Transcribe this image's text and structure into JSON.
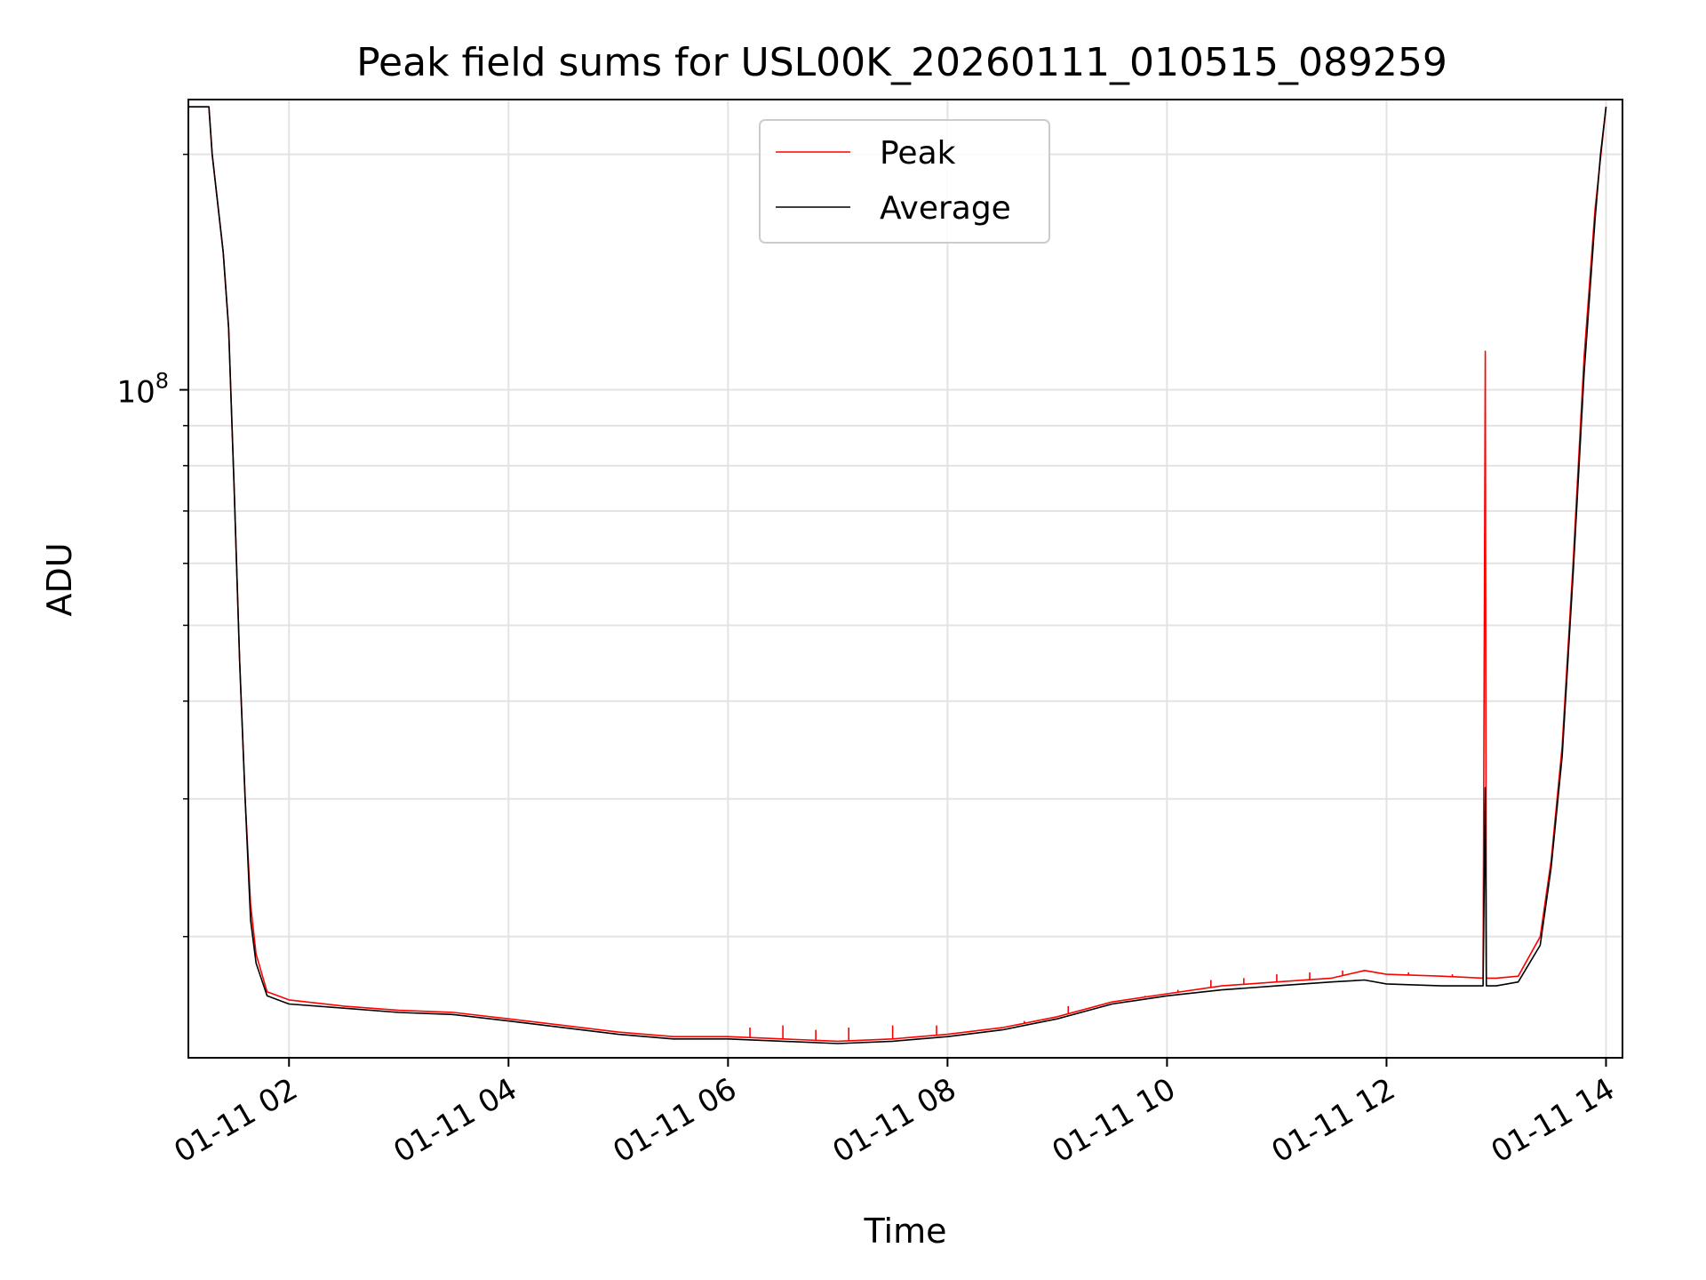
{
  "chart_data": {
    "type": "line",
    "title": "Peak field sums for USL00K_20260111_010515_089259",
    "xlabel": "Time",
    "ylabel": "ADU",
    "yscale": "log",
    "ylim": [
      14000000,
      235000000
    ],
    "xlim_hours": [
      1.083,
      14.15
    ],
    "grid": true,
    "legend_position": "top-center",
    "x_ticks": [
      {
        "hour": 2,
        "label": "01-11 02"
      },
      {
        "hour": 4,
        "label": "01-11 04"
      },
      {
        "hour": 6,
        "label": "01-11 06"
      },
      {
        "hour": 8,
        "label": "01-11 08"
      },
      {
        "hour": 10,
        "label": "01-11 10"
      },
      {
        "hour": 12,
        "label": "01-11 12"
      },
      {
        "hour": 14,
        "label": "01-11 14"
      }
    ],
    "y_major_tick": {
      "value": 100000000,
      "label_base": "10",
      "label_exp": "8"
    },
    "y_minor_ticks": [
      20000000,
      30000000,
      40000000,
      50000000,
      60000000,
      70000000,
      80000000,
      90000000,
      200000000
    ],
    "series": [
      {
        "name": "Peak",
        "color": "#ff0000",
        "x_hours": [
          1.083,
          1.2,
          1.27,
          1.3,
          1.4,
          1.45,
          1.5,
          1.55,
          1.6,
          1.65,
          1.7,
          1.8,
          1.9,
          2.0,
          2.5,
          3.0,
          3.5,
          4.0,
          4.5,
          5.0,
          5.5,
          6.0,
          6.5,
          7.0,
          7.5,
          8.0,
          8.5,
          9.0,
          9.5,
          10.0,
          10.5,
          11.0,
          11.5,
          11.8,
          12.0,
          12.5,
          12.88,
          12.9,
          12.91,
          13.0,
          13.2,
          13.4,
          13.5,
          13.6,
          13.7,
          13.8,
          13.9,
          14.0
        ],
        "y_values": [
          230000000,
          230000000,
          230000000,
          200000000,
          150000000,
          120000000,
          75000000,
          45000000,
          30000000,
          22000000,
          19000000,
          17000000,
          16800000,
          16600000,
          16300000,
          16100000,
          16000000,
          15700000,
          15400000,
          15100000,
          14900000,
          14900000,
          14800000,
          14700000,
          14800000,
          15000000,
          15300000,
          15800000,
          16500000,
          16900000,
          17300000,
          17500000,
          17700000,
          18100000,
          17900000,
          17800000,
          17700000,
          112000000,
          17700000,
          17700000,
          17800000,
          20000000,
          25000000,
          35000000,
          60000000,
          110000000,
          170000000,
          230000000
        ],
        "spikes": [
          {
            "hour": 6.2,
            "value": 15300000
          },
          {
            "hour": 6.5,
            "value": 15400000
          },
          {
            "hour": 6.8,
            "value": 15200000
          },
          {
            "hour": 7.1,
            "value": 15300000
          },
          {
            "hour": 7.5,
            "value": 15400000
          },
          {
            "hour": 7.9,
            "value": 15400000
          },
          {
            "hour": 8.7,
            "value": 15600000
          },
          {
            "hour": 9.1,
            "value": 16300000
          },
          {
            "hour": 9.8,
            "value": 16800000
          },
          {
            "hour": 10.1,
            "value": 17100000
          },
          {
            "hour": 10.4,
            "value": 17600000
          },
          {
            "hour": 10.7,
            "value": 17700000
          },
          {
            "hour": 11.0,
            "value": 17900000
          },
          {
            "hour": 11.3,
            "value": 18000000
          },
          {
            "hour": 11.6,
            "value": 18100000
          },
          {
            "hour": 12.2,
            "value": 18000000
          },
          {
            "hour": 12.6,
            "value": 17900000
          }
        ]
      },
      {
        "name": "Average",
        "color": "#000000",
        "x_hours": [
          1.083,
          1.2,
          1.27,
          1.3,
          1.4,
          1.45,
          1.5,
          1.55,
          1.6,
          1.65,
          1.7,
          1.8,
          1.9,
          2.0,
          2.5,
          3.0,
          3.5,
          4.0,
          4.5,
          5.0,
          5.5,
          6.0,
          6.5,
          7.0,
          7.5,
          8.0,
          8.5,
          9.0,
          9.5,
          10.0,
          10.5,
          11.0,
          11.5,
          11.8,
          12.0,
          12.5,
          12.88,
          12.9,
          12.91,
          13.0,
          13.2,
          13.4,
          13.5,
          13.6,
          13.7,
          13.8,
          13.9,
          13.95,
          14.0
        ],
        "y_values": [
          230000000,
          230000000,
          230000000,
          200000000,
          150000000,
          120000000,
          75000000,
          45000000,
          30000000,
          21000000,
          18500000,
          16800000,
          16600000,
          16400000,
          16200000,
          16000000,
          15900000,
          15600000,
          15300000,
          15000000,
          14800000,
          14800000,
          14700000,
          14600000,
          14700000,
          14900000,
          15200000,
          15700000,
          16400000,
          16800000,
          17100000,
          17300000,
          17500000,
          17600000,
          17400000,
          17300000,
          17300000,
          31000000,
          17300000,
          17300000,
          17500000,
          19500000,
          24500000,
          34000000,
          58000000,
          105000000,
          165000000,
          200000000,
          230000000
        ]
      }
    ]
  }
}
